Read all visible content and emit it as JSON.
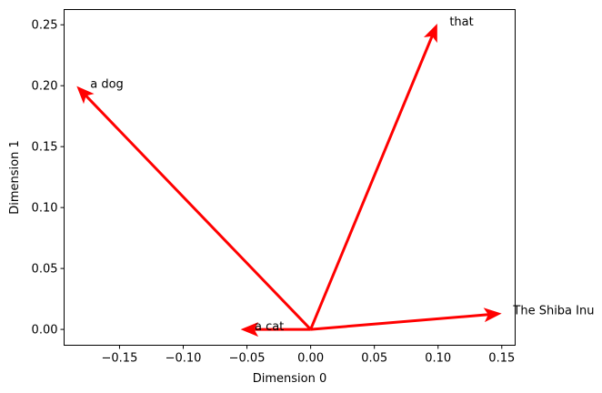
{
  "chart_data": {
    "type": "quiver",
    "title": "",
    "xlabel": "Dimension 0",
    "ylabel": "Dimension 1",
    "xlim": [
      -0.1935,
      0.1605
    ],
    "ylim": [
      -0.013,
      0.2625
    ],
    "xticks": [
      -0.15,
      -0.1,
      -0.05,
      0.0,
      0.05,
      0.1,
      0.15
    ],
    "xtick_labels": [
      "−0.15",
      "−0.10",
      "−0.05",
      "0.00",
      "0.05",
      "0.10",
      "0.15"
    ],
    "yticks": [
      0.0,
      0.05,
      0.1,
      0.15,
      0.2,
      0.25
    ],
    "ytick_labels": [
      "0.00",
      "0.05",
      "0.10",
      "0.15",
      "0.20",
      "0.25"
    ],
    "grid": false,
    "arrow_color": "#ff0000",
    "vectors": [
      {
        "label": "a dog",
        "x0": 0,
        "y0": 0,
        "x": -0.183,
        "y": 0.199,
        "label_x": -0.173,
        "label_y": 0.199
      },
      {
        "label": "that",
        "x0": 0,
        "y0": 0,
        "x": 0.099,
        "y": 0.25,
        "label_x": 0.109,
        "label_y": 0.25
      },
      {
        "label": "a cat",
        "x0": 0,
        "y0": 0,
        "x": -0.054,
        "y": 0.0,
        "label_x": -0.044,
        "label_y": 0.0
      },
      {
        "label": "The Shiba Inu",
        "x0": 0,
        "y0": 0,
        "x": 0.149,
        "y": 0.013,
        "label_x": 0.159,
        "label_y": 0.013
      }
    ]
  }
}
